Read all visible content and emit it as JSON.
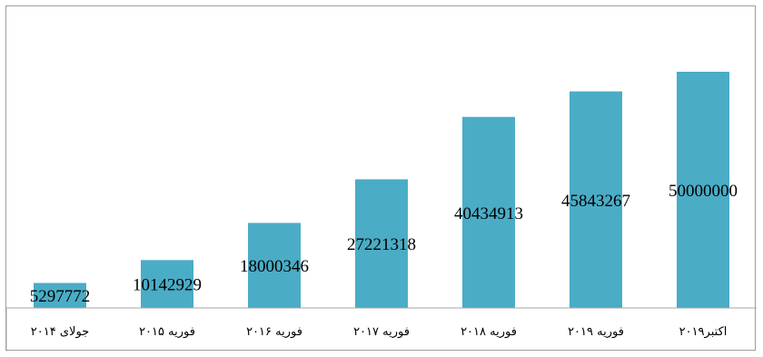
{
  "chart_data": {
    "type": "bar",
    "categories": [
      "جولای ۲۰۱۴",
      "فوریه ۲۰۱۵",
      "فوریه ۲۰۱۶",
      "فوریه ۲۰۱۷",
      "فوریه ۲۰۱۸",
      "فوریه ۲۰۱۹",
      "اکتبر۲۰۱۹"
    ],
    "values": [
      5297772,
      10142929,
      18000346,
      27221318,
      40434913,
      45843267,
      50000000
    ],
    "data_labels": [
      "5297772",
      "10142929",
      "18000346",
      "27221318",
      "40434913",
      "45843267",
      "50000000"
    ],
    "ylim": [
      0,
      60000000
    ],
    "grid": false,
    "legend": "none",
    "bar_color": "#4bacc6"
  }
}
